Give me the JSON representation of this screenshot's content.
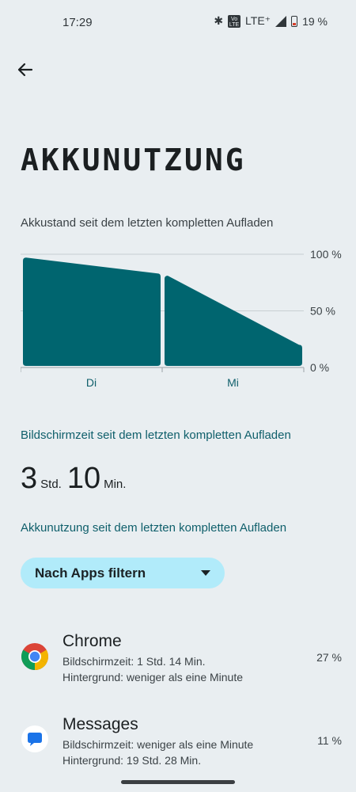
{
  "status_bar": {
    "time": "17:29",
    "network": "LTE⁺",
    "volte": "Vo LTE",
    "battery": "19 %"
  },
  "title": "AKKUNUTZUNG",
  "chart_caption": "Akkustand seit dem letzten kompletten Aufladen",
  "chart_data": {
    "type": "area",
    "y_ticks": [
      "100 %",
      "50 %",
      "0 %"
    ],
    "ylim": [
      0,
      100
    ],
    "categories": [
      "Di",
      "Mi"
    ],
    "segments": [
      {
        "points": [
          [
            0,
            97
          ],
          [
            1,
            83
          ]
        ]
      },
      {
        "points": [
          [
            0,
            81
          ],
          [
            1,
            20
          ]
        ]
      }
    ],
    "fill_color": "#00656f",
    "grid": true
  },
  "screen_time": {
    "heading": "Bildschirmzeit seit dem letzten kompletten Aufladen",
    "hours": "3",
    "hours_unit": "Std.",
    "minutes": "10",
    "minutes_unit": "Min."
  },
  "usage_heading": "Akkunutzung seit dem letzten kompletten Aufladen",
  "filter": {
    "label": "Nach Apps filtern"
  },
  "apps": [
    {
      "name": "Chrome",
      "line1": "Bildschirmzeit: 1 Std. 14 Min.",
      "line2": "Hintergrund: weniger als eine Minute",
      "percent": "27 %",
      "icon": "chrome-icon"
    },
    {
      "name": "Messages",
      "line1": "Bildschirmzeit: weniger als eine Minute",
      "line2": "Hintergrund: 19 Std. 28 Min.",
      "percent": "11 %",
      "icon": "messages-icon"
    }
  ],
  "colors": {
    "accent": "#0f5f6b",
    "chart_fill": "#00656f",
    "filter_bg": "#b1ebfa",
    "background": "#e9eef1"
  }
}
